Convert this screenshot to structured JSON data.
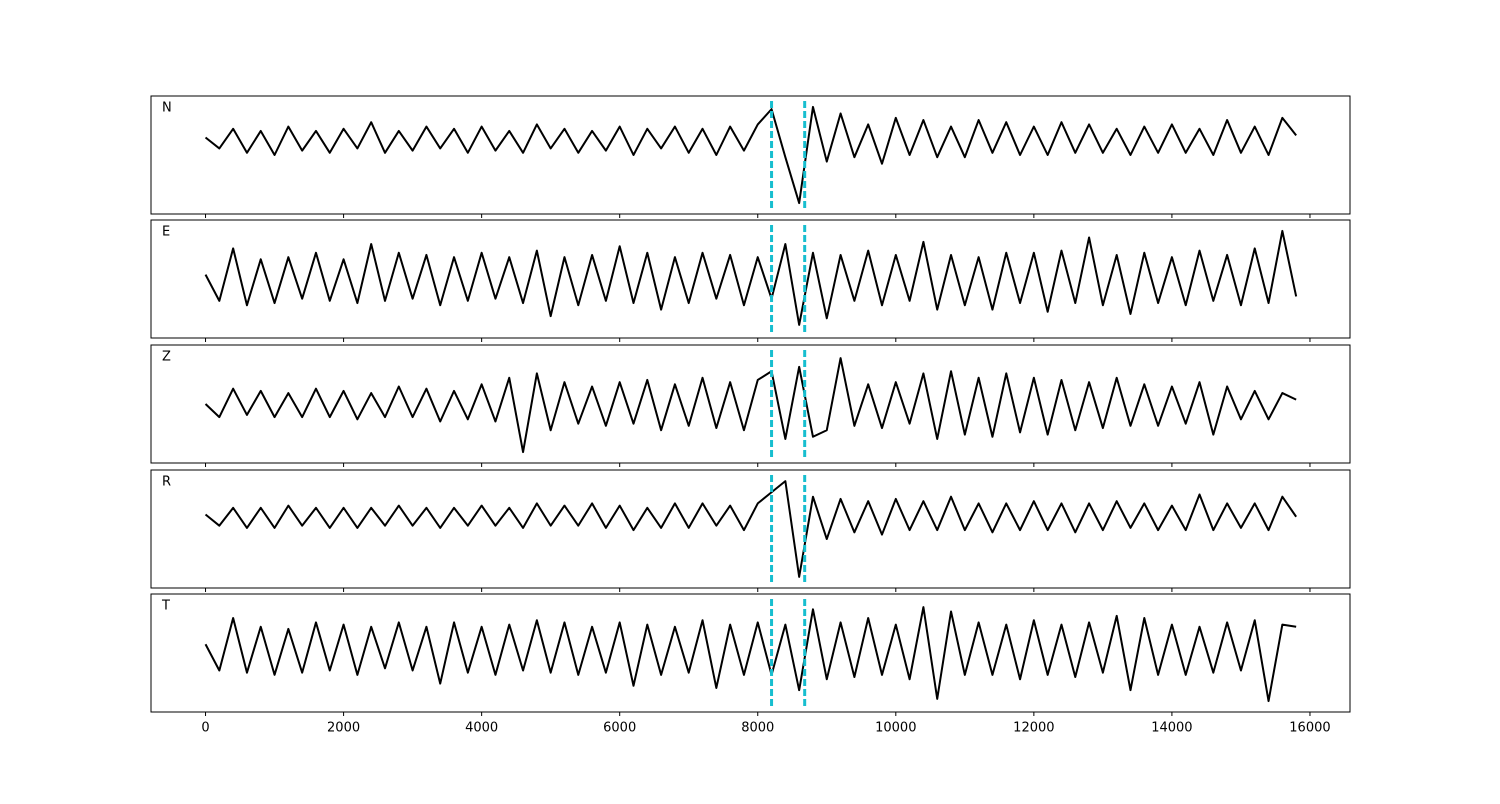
{
  "chart_data": {
    "type": "line",
    "layout": "stacked",
    "xlim": [
      -790,
      16580
    ],
    "xticks": [
      0,
      2000,
      4000,
      6000,
      8000,
      10000,
      12000,
      14000,
      16000
    ],
    "vlines": {
      "x": [
        8200,
        8680
      ],
      "color": "#17becf",
      "style": "dashed"
    },
    "x": [
      0,
      200,
      400,
      600,
      800,
      1000,
      1200,
      1400,
      1600,
      1800,
      2000,
      2200,
      2400,
      2600,
      2800,
      3000,
      3200,
      3400,
      3600,
      3800,
      4000,
      4200,
      4400,
      4600,
      4800,
      5000,
      5200,
      5400,
      5600,
      5800,
      6000,
      6200,
      6400,
      6600,
      6800,
      7000,
      7200,
      7400,
      7600,
      7800,
      8000,
      8200,
      8400,
      8600,
      8800,
      9000,
      9200,
      9400,
      9600,
      9800,
      10000,
      10200,
      10400,
      10600,
      10800,
      11000,
      11200,
      11400,
      11600,
      11800,
      12000,
      12200,
      12400,
      12600,
      12800,
      13000,
      13200,
      13400,
      13600,
      13800,
      14000,
      14200,
      14400,
      14600,
      14800,
      15000,
      15200,
      15400,
      15600,
      15800
    ],
    "series": [
      {
        "name": "N",
        "color": "#000000",
        "ylim": [
          -1.7,
          1.0
        ],
        "values": [
          0.05,
          -0.2,
          0.25,
          -0.3,
          0.2,
          -0.35,
          0.3,
          -0.25,
          0.2,
          -0.3,
          0.25,
          -0.2,
          0.4,
          -0.3,
          0.2,
          -0.25,
          0.3,
          -0.2,
          0.25,
          -0.3,
          0.3,
          -0.25,
          0.2,
          -0.3,
          0.35,
          -0.2,
          0.25,
          -0.3,
          0.2,
          -0.25,
          0.3,
          -0.35,
          0.25,
          -0.2,
          0.3,
          -0.3,
          0.25,
          -0.35,
          0.3,
          -0.25,
          0.35,
          0.7,
          -0.4,
          -1.45,
          0.75,
          -0.5,
          0.6,
          -0.4,
          0.35,
          -0.55,
          0.5,
          -0.35,
          0.45,
          -0.4,
          0.3,
          -0.4,
          0.45,
          -0.3,
          0.4,
          -0.35,
          0.3,
          -0.35,
          0.4,
          -0.3,
          0.35,
          -0.3,
          0.25,
          -0.35,
          0.3,
          -0.3,
          0.35,
          -0.3,
          0.25,
          -0.35,
          0.45,
          -0.3,
          0.3,
          -0.35,
          0.5,
          0.1
        ]
      },
      {
        "name": "E",
        "color": "#000000",
        "ylim": [
          -1.35,
          1.35
        ],
        "values": [
          0.1,
          -0.5,
          0.7,
          -0.6,
          0.45,
          -0.55,
          0.5,
          -0.45,
          0.6,
          -0.5,
          0.45,
          -0.55,
          0.8,
          -0.5,
          0.6,
          -0.45,
          0.55,
          -0.6,
          0.5,
          -0.5,
          0.6,
          -0.45,
          0.5,
          -0.55,
          0.65,
          -0.85,
          0.5,
          -0.6,
          0.55,
          -0.5,
          0.75,
          -0.55,
          0.6,
          -0.7,
          0.5,
          -0.55,
          0.6,
          -0.45,
          0.55,
          -0.6,
          0.5,
          -0.45,
          0.8,
          -1.05,
          0.6,
          -0.9,
          0.55,
          -0.5,
          0.65,
          -0.6,
          0.55,
          -0.5,
          0.85,
          -0.7,
          0.55,
          -0.6,
          0.5,
          -0.7,
          0.6,
          -0.55,
          0.6,
          -0.75,
          0.65,
          -0.55,
          0.95,
          -0.6,
          0.55,
          -0.8,
          0.6,
          -0.55,
          0.5,
          -0.6,
          0.65,
          -0.5,
          0.55,
          -0.6,
          0.7,
          -0.55,
          1.1,
          -0.4
        ]
      },
      {
        "name": "Z",
        "color": "#000000",
        "ylim": [
          -1.35,
          1.35
        ],
        "values": [
          0.0,
          -0.3,
          0.35,
          -0.25,
          0.3,
          -0.3,
          0.25,
          -0.3,
          0.35,
          -0.3,
          0.3,
          -0.35,
          0.25,
          -0.3,
          0.4,
          -0.3,
          0.35,
          -0.4,
          0.3,
          -0.35,
          0.45,
          -0.4,
          0.6,
          -1.1,
          0.7,
          -0.6,
          0.5,
          -0.45,
          0.4,
          -0.5,
          0.5,
          -0.45,
          0.55,
          -0.6,
          0.45,
          -0.5,
          0.6,
          -0.55,
          0.5,
          -0.6,
          0.55,
          0.75,
          -0.8,
          0.85,
          -0.75,
          -0.6,
          1.05,
          -0.5,
          0.45,
          -0.55,
          0.5,
          -0.45,
          0.7,
          -0.8,
          0.75,
          -0.7,
          0.6,
          -0.75,
          0.7,
          -0.65,
          0.6,
          -0.7,
          0.55,
          -0.6,
          0.5,
          -0.55,
          0.6,
          -0.5,
          0.45,
          -0.5,
          0.4,
          -0.45,
          0.5,
          -0.7,
          0.4,
          -0.35,
          0.3,
          -0.35,
          0.25,
          0.1
        ]
      },
      {
        "name": "R",
        "color": "#000000",
        "ylim": [
          -1.6,
          1.05
        ],
        "values": [
          0.05,
          -0.2,
          0.2,
          -0.25,
          0.2,
          -0.25,
          0.25,
          -0.2,
          0.2,
          -0.25,
          0.2,
          -0.25,
          0.2,
          -0.2,
          0.25,
          -0.2,
          0.2,
          -0.25,
          0.2,
          -0.2,
          0.25,
          -0.2,
          0.2,
          -0.25,
          0.3,
          -0.2,
          0.25,
          -0.2,
          0.3,
          -0.25,
          0.25,
          -0.3,
          0.2,
          -0.25,
          0.3,
          -0.25,
          0.3,
          -0.2,
          0.25,
          -0.3,
          0.3,
          0.55,
          0.8,
          -1.35,
          0.45,
          -0.5,
          0.4,
          -0.35,
          0.35,
          -0.4,
          0.4,
          -0.3,
          0.35,
          -0.3,
          0.45,
          -0.3,
          0.3,
          -0.35,
          0.3,
          -0.3,
          0.35,
          -0.3,
          0.3,
          -0.35,
          0.3,
          -0.3,
          0.35,
          -0.25,
          0.3,
          -0.3,
          0.25,
          -0.3,
          0.5,
          -0.3,
          0.3,
          -0.25,
          0.3,
          -0.3,
          0.45,
          0.0
        ]
      },
      {
        "name": "T",
        "color": "#000000",
        "ylim": [
          -1.45,
          1.25
        ],
        "values": [
          0.1,
          -0.5,
          0.7,
          -0.55,
          0.5,
          -0.6,
          0.45,
          -0.55,
          0.6,
          -0.5,
          0.55,
          -0.6,
          0.5,
          -0.45,
          0.6,
          -0.5,
          0.5,
          -0.8,
          0.6,
          -0.55,
          0.5,
          -0.6,
          0.55,
          -0.5,
          0.65,
          -0.55,
          0.6,
          -0.6,
          0.5,
          -0.55,
          0.6,
          -0.85,
          0.55,
          -0.6,
          0.5,
          -0.55,
          0.65,
          -0.9,
          0.55,
          -0.6,
          0.6,
          -0.6,
          0.55,
          -0.95,
          0.9,
          -0.7,
          0.6,
          -0.65,
          0.7,
          -0.6,
          0.55,
          -0.7,
          0.95,
          -1.15,
          0.85,
          -0.6,
          0.6,
          -0.6,
          0.55,
          -0.7,
          0.65,
          -0.6,
          0.55,
          -0.65,
          0.6,
          -0.55,
          0.75,
          -0.95,
          0.7,
          -0.6,
          0.55,
          -0.6,
          0.5,
          -0.55,
          0.6,
          -0.5,
          0.65,
          -1.2,
          0.55,
          0.5
        ]
      }
    ]
  }
}
